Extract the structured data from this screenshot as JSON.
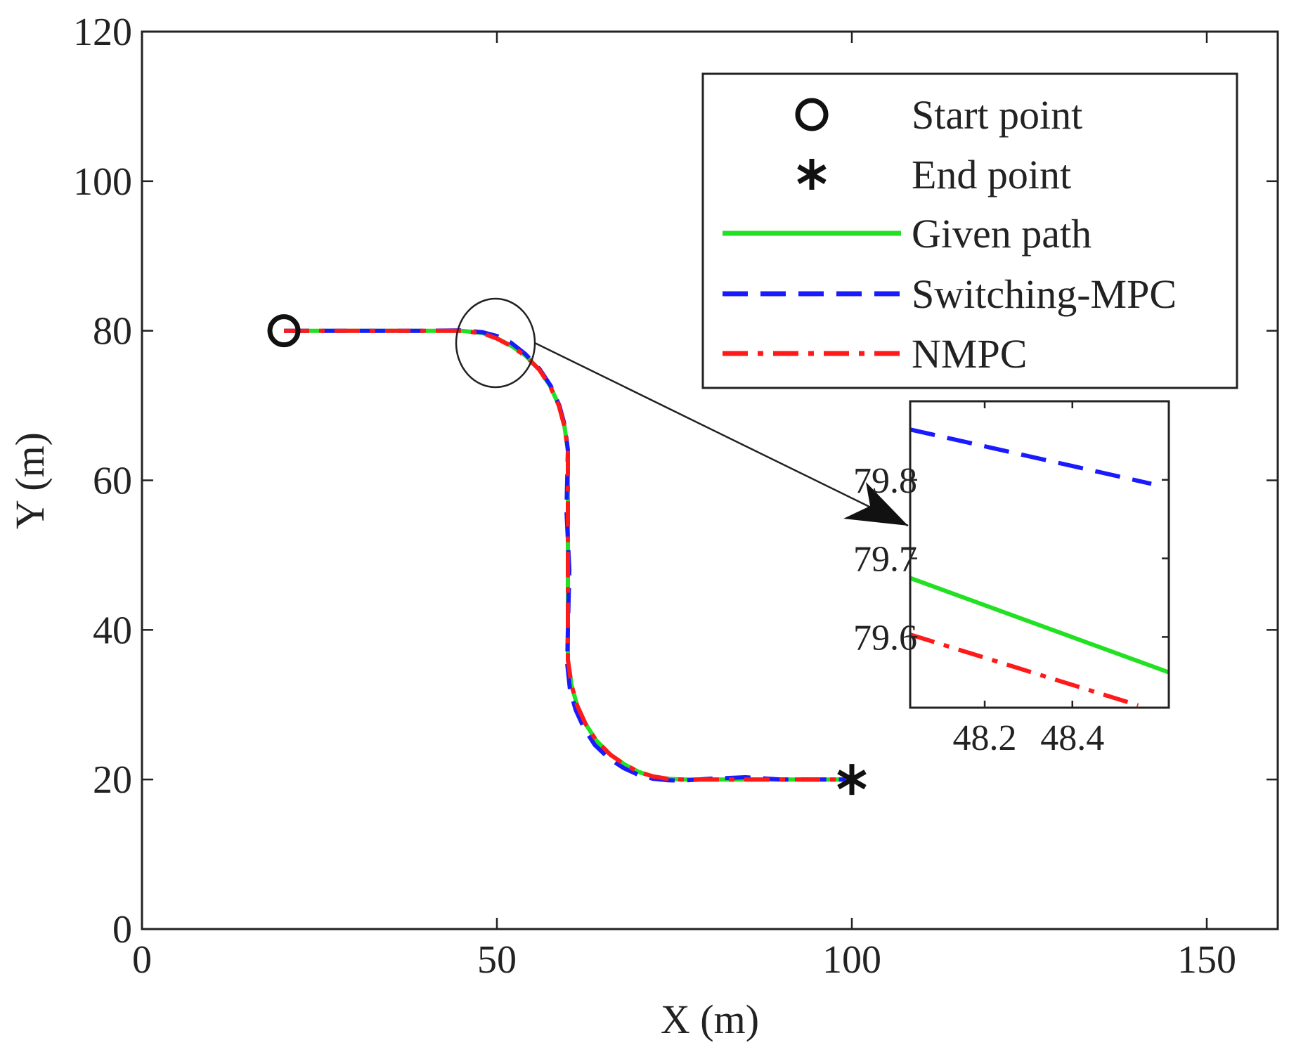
{
  "chart_data": [
    {
      "type": "line",
      "title": "",
      "xlabel": "X (m)",
      "ylabel": "Y (m)",
      "xlim": [
        0,
        160
      ],
      "ylim": [
        0,
        120
      ],
      "xticks": [
        0,
        50,
        100,
        150
      ],
      "yticks": [
        0,
        20,
        40,
        60,
        80,
        100,
        120
      ],
      "grid": false,
      "legend_position": "top-right",
      "colors": {
        "given": "#22e022",
        "switching": "#1a1aff",
        "nmpc": "#ff1a1a",
        "axes": "#222222"
      },
      "markers": [
        {
          "name": "Start point",
          "shape": "circle",
          "x": 20,
          "y": 80
        },
        {
          "name": "End point",
          "shape": "asterisk",
          "x": 100,
          "y": 20
        }
      ],
      "series": [
        {
          "name": "Given path",
          "style": "solid",
          "x": [
            20,
            30,
            40,
            45,
            48,
            50,
            52,
            54,
            56,
            57.5,
            58.7,
            59.5,
            60,
            60,
            60,
            60,
            60,
            60.5,
            61.3,
            62.5,
            64,
            66,
            68,
            70,
            72,
            74,
            76,
            80,
            90,
            100
          ],
          "y": [
            80,
            80,
            80,
            80,
            79.7,
            79,
            78,
            76.7,
            74.8,
            72.6,
            70.1,
            67.3,
            64,
            60,
            50,
            40,
            36,
            32.7,
            29.9,
            27.4,
            25.2,
            23.3,
            22,
            21,
            20.4,
            20.1,
            20,
            20,
            20,
            20
          ]
        },
        {
          "name": "Switching-MPC",
          "style": "dashed",
          "x": [
            20,
            30,
            40,
            45,
            48,
            50,
            52,
            54,
            56,
            57.6,
            58.8,
            59.6,
            60,
            59.8,
            60.2,
            60,
            59.9,
            60.3,
            61.1,
            62.3,
            63.8,
            65.8,
            67.9,
            70,
            72,
            74,
            76,
            80,
            85,
            90,
            100
          ],
          "y": [
            80,
            80,
            80,
            80.05,
            79.8,
            79.3,
            78.4,
            76.9,
            74.9,
            72.6,
            70,
            67.2,
            64,
            56,
            48,
            40,
            35.5,
            32,
            29.3,
            26.8,
            24.6,
            22.8,
            21.5,
            20.6,
            20.1,
            19.9,
            19.85,
            20.1,
            20.3,
            20,
            20
          ]
        },
        {
          "name": "NMPC",
          "style": "dashdot",
          "x": [
            20,
            30,
            40,
            45,
            48,
            50,
            52,
            54,
            56,
            57.5,
            58.7,
            59.5,
            60,
            60,
            60,
            60,
            60,
            60.5,
            61.3,
            62.5,
            64,
            66,
            68,
            70,
            72,
            74,
            76,
            80,
            90,
            100
          ],
          "y": [
            80,
            80,
            80,
            80,
            79.65,
            78.95,
            77.95,
            76.65,
            74.75,
            72.55,
            70.05,
            67.25,
            64,
            60,
            50,
            40,
            36,
            32.7,
            29.9,
            27.4,
            25.2,
            23.3,
            22,
            21,
            20.4,
            20.1,
            20,
            20,
            20,
            20
          ]
        }
      ]
    },
    {
      "type": "line",
      "title": "",
      "xlim": [
        48.03,
        48.62
      ],
      "ylim": [
        79.51,
        79.9
      ],
      "xticks": [
        48.2,
        48.4
      ],
      "yticks": [
        79.6,
        79.7,
        79.8
      ],
      "xtick_labels": [
        "48.2",
        "48.4"
      ],
      "ytick_labels": [
        "79.6",
        "79.7",
        "79.8"
      ],
      "grid": false,
      "series": [
        {
          "name": "Given path",
          "style": "solid",
          "x": [
            48.03,
            48.62
          ],
          "y": [
            79.675,
            79.555
          ]
        },
        {
          "name": "Switching-MPC",
          "style": "dashed",
          "x": [
            48.03,
            48.58
          ],
          "y": [
            79.864,
            79.795
          ]
        },
        {
          "name": "NMPC",
          "style": "dashdot",
          "x": [
            48.03,
            48.55
          ],
          "y": [
            79.603,
            79.513
          ]
        }
      ]
    }
  ],
  "legend": [
    {
      "label": "Start point",
      "icon": "circle-marker"
    },
    {
      "label": "End point",
      "icon": "asterisk-marker"
    },
    {
      "label": "Given path",
      "icon": "solid-line"
    },
    {
      "label": "Switching-MPC",
      "icon": "dashed-line"
    },
    {
      "label": "NMPC",
      "icon": "dashdot-line"
    }
  ]
}
